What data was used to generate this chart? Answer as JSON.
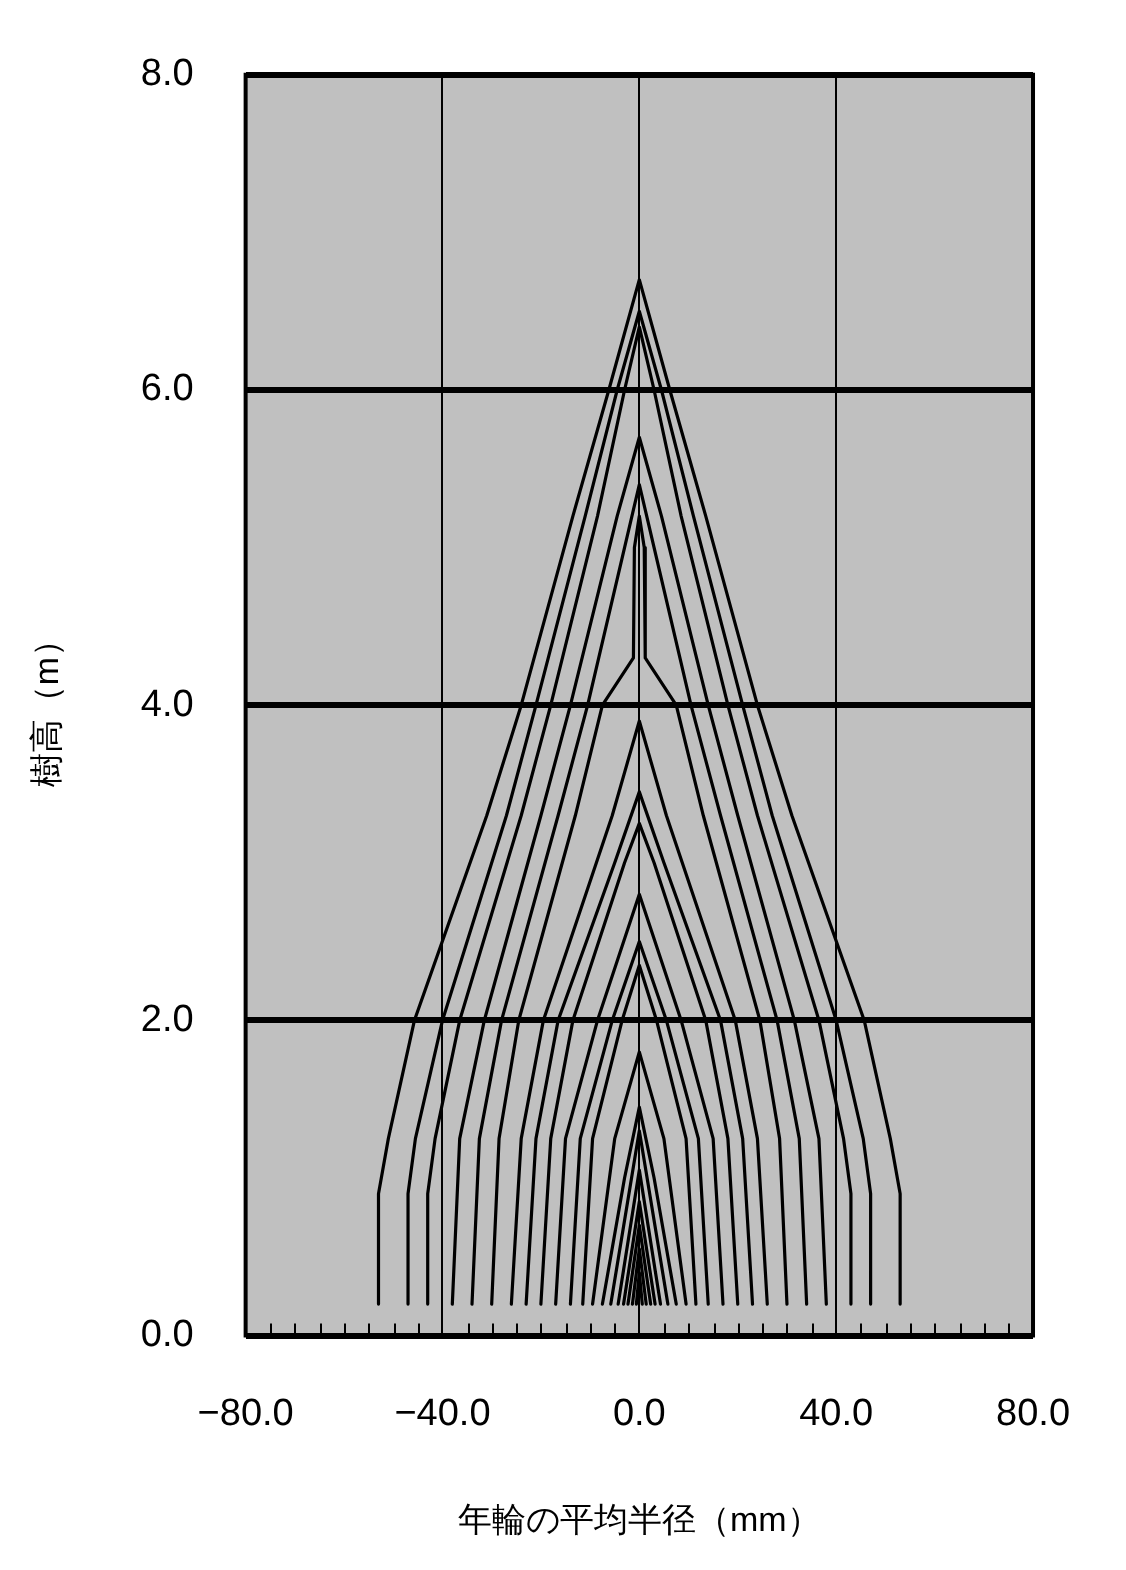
{
  "chart_data": {
    "type": "line",
    "xlabel": "年輪の平均半径（mm）",
    "ylabel": "樹高（m）",
    "xlim": [
      -80,
      80
    ],
    "ylim": [
      0,
      8
    ],
    "xticks": [
      {
        "value": -80,
        "label": "−80.0"
      },
      {
        "value": -75,
        "label": null
      },
      {
        "value": -70,
        "label": null
      },
      {
        "value": -65,
        "label": null
      },
      {
        "value": -60,
        "label": null
      },
      {
        "value": -55,
        "label": null
      },
      {
        "value": -50,
        "label": null
      },
      {
        "value": -45,
        "label": null
      },
      {
        "value": -40,
        "label": "−40.0"
      },
      {
        "value": -35,
        "label": null
      },
      {
        "value": -30,
        "label": null
      },
      {
        "value": -25,
        "label": null
      },
      {
        "value": -20,
        "label": null
      },
      {
        "value": -15,
        "label": null
      },
      {
        "value": -10,
        "label": null
      },
      {
        "value": -5,
        "label": null
      },
      {
        "value": 0,
        "label": "0.0"
      },
      {
        "value": 5,
        "label": null
      },
      {
        "value": 10,
        "label": null
      },
      {
        "value": 15,
        "label": null
      },
      {
        "value": 20,
        "label": null
      },
      {
        "value": 25,
        "label": null
      },
      {
        "value": 30,
        "label": null
      },
      {
        "value": 35,
        "label": null
      },
      {
        "value": 40,
        "label": "40.0"
      },
      {
        "value": 45,
        "label": null
      },
      {
        "value": 50,
        "label": null
      },
      {
        "value": 55,
        "label": null
      },
      {
        "value": 60,
        "label": null
      },
      {
        "value": 65,
        "label": null
      },
      {
        "value": 70,
        "label": null
      },
      {
        "value": 75,
        "label": null
      },
      {
        "value": 80,
        "label": "80.0"
      }
    ],
    "yticks": [
      {
        "value": 0,
        "label": "0.0"
      },
      {
        "value": 2,
        "label": "2.0"
      },
      {
        "value": 4,
        "label": "4.0"
      },
      {
        "value": 6,
        "label": "6.0"
      },
      {
        "value": 8,
        "label": "8.0"
      }
    ],
    "grid": true,
    "legend": false,
    "marker": "none",
    "line_style": "solid",
    "series": [
      {
        "color": "#000000",
        "x": [
          -53,
          -53,
          -51,
          -45.7,
          -31,
          -24,
          -13.5,
          -6.2,
          0,
          6.2,
          13.5,
          24,
          31,
          45.7,
          51,
          53,
          53
        ],
        "values": [
          0.2,
          0.9,
          1.25,
          2,
          3.3,
          4,
          5.2,
          6,
          6.7,
          6,
          5.2,
          4,
          3.3,
          2,
          1.25,
          0.9,
          0.2
        ]
      },
      {
        "color": "#000000",
        "x": [
          -47,
          -47,
          -45.5,
          -40,
          -27,
          -21,
          -11,
          -4.5,
          0,
          4.5,
          11,
          21,
          27,
          40,
          45.5,
          47,
          47
        ],
        "values": [
          0.2,
          0.9,
          1.25,
          2,
          3.3,
          4,
          5.2,
          6,
          6.5,
          6,
          5.2,
          4,
          3.3,
          2,
          1.25,
          0.9,
          0.2
        ]
      },
      {
        "color": "#000000",
        "x": [
          -43,
          -43,
          -41.5,
          -36.5,
          -24,
          -18,
          -8.5,
          -3,
          0,
          3,
          8.5,
          18,
          24,
          36.5,
          41.5,
          43,
          43
        ],
        "values": [
          0.2,
          0.9,
          1.25,
          2,
          3.3,
          4,
          5.2,
          6,
          6.4,
          6,
          5.2,
          4,
          3.3,
          2,
          1.25,
          0.9,
          0.2
        ]
      },
      {
        "color": "#000000",
        "x": [
          -38,
          -36.5,
          -31.5,
          -20,
          -14,
          -4.5,
          0,
          4.5,
          14,
          20,
          31.5,
          36.5,
          38
        ],
        "values": [
          0.2,
          1.25,
          2,
          3.3,
          4,
          5.2,
          5.7,
          5.2,
          4,
          3.3,
          2,
          1.25,
          0.2
        ]
      },
      {
        "color": "#000000",
        "x": [
          -34,
          -32.5,
          -28,
          -16.5,
          -10.5,
          -3,
          0,
          3,
          10.5,
          16.5,
          28,
          32.5,
          34
        ],
        "values": [
          0.2,
          1.25,
          2,
          3.3,
          4,
          5,
          5.4,
          5,
          4,
          3.3,
          2,
          1.25,
          0.2
        ]
      },
      {
        "color": "#000000",
        "x": [
          -30,
          -28.5,
          -24.5,
          -13,
          -7.5,
          -1.2,
          -1,
          0,
          1,
          1.2,
          7.5,
          13,
          24.5,
          28.5,
          30
        ],
        "values": [
          0.2,
          1.25,
          2,
          3.3,
          4,
          4.3,
          5,
          5.2,
          5,
          4.3,
          4,
          3.3,
          2,
          1.25,
          0.2
        ]
      },
      {
        "color": "#000000",
        "x": [
          -26,
          -24,
          -19.5,
          -5.5,
          0,
          5.5,
          19.5,
          24,
          26
        ],
        "values": [
          0.2,
          1.25,
          2,
          3.3,
          3.9,
          3.3,
          2,
          1.25,
          0.2
        ]
      },
      {
        "color": "#000000",
        "x": [
          -23,
          -21,
          -16.5,
          -5,
          0,
          5,
          16.5,
          21,
          23
        ],
        "values": [
          0.2,
          1.25,
          2,
          3,
          3.45,
          3,
          2,
          1.25,
          0.2
        ]
      },
      {
        "color": "#000000",
        "x": [
          -20,
          -18,
          -13.5,
          -3,
          0,
          3,
          13.5,
          18,
          20
        ],
        "values": [
          0.2,
          1.25,
          2,
          3,
          3.25,
          3,
          2,
          1.25,
          0.2
        ]
      },
      {
        "color": "#000000",
        "x": [
          -17,
          -15,
          -8.5,
          0,
          8.5,
          15,
          17
        ],
        "values": [
          0.2,
          1.25,
          2,
          2.8,
          2,
          1.25,
          0.2
        ]
      },
      {
        "color": "#000000",
        "x": [
          -14,
          -12,
          -5.5,
          0,
          5.5,
          12,
          14
        ],
        "values": [
          0.2,
          1.25,
          2,
          2.5,
          2,
          1.25,
          0.2
        ]
      },
      {
        "color": "#000000",
        "x": [
          -11.5,
          -9.5,
          -3.5,
          0,
          3.5,
          9.5,
          11.5
        ],
        "values": [
          0.2,
          1.25,
          2,
          2.35,
          2,
          1.25,
          0.2
        ]
      },
      {
        "color": "#000000",
        "x": [
          -9.5,
          -5,
          0,
          5,
          9.5
        ],
        "values": [
          0.2,
          1.25,
          1.8,
          1.25,
          0.2
        ]
      },
      {
        "color": "#000000",
        "x": [
          -7.5,
          -3,
          0,
          3,
          7.5
        ],
        "values": [
          0.2,
          1,
          1.45,
          1,
          0.2
        ]
      },
      {
        "color": "#000000",
        "x": [
          -5.8,
          0,
          5.8
        ],
        "values": [
          0.2,
          1.3,
          0.2
        ]
      },
      {
        "color": "#000000",
        "x": [
          -4.3,
          0,
          4.3
        ],
        "values": [
          0.2,
          1.05,
          0.2
        ]
      },
      {
        "color": "#000000",
        "x": [
          -3.2,
          0,
          3.2
        ],
        "values": [
          0.2,
          0.85,
          0.2
        ]
      },
      {
        "color": "#000000",
        "x": [
          -2.3,
          0,
          2.3
        ],
        "values": [
          0.2,
          0.7,
          0.2
        ]
      },
      {
        "color": "#000000",
        "x": [
          -1.4,
          0,
          1.4
        ],
        "values": [
          0.2,
          0.55,
          0.2
        ]
      },
      {
        "color": "#000000",
        "x": [
          -0.6,
          0,
          0.6
        ],
        "values": [
          0.2,
          0.4,
          0.2
        ]
      }
    ]
  }
}
